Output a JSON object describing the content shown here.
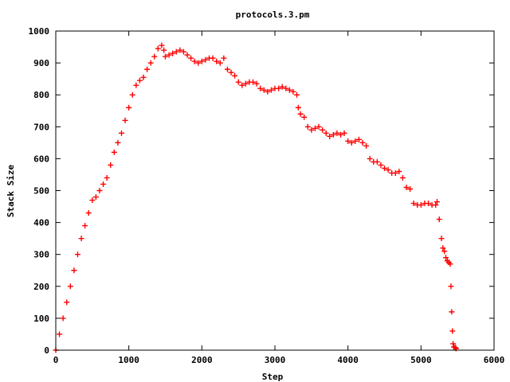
{
  "chart_data": {
    "type": "scatter",
    "title": "protocols.3.pm",
    "xlabel": "Step",
    "ylabel": "Stack Size",
    "xlim": [
      0,
      6000
    ],
    "ylim": [
      0,
      1000
    ],
    "xticks": [
      "0",
      "1000",
      "2000",
      "3000",
      "4000",
      "5000",
      "6000"
    ],
    "yticks": [
      "0",
      "100",
      "200",
      "300",
      "400",
      "500",
      "600",
      "700",
      "800",
      "900",
      "1000"
    ],
    "grid": false,
    "legend": "none",
    "marker": "+",
    "color": "#ff0000",
    "series": [
      {
        "points": [
          [
            0,
            0
          ],
          [
            50,
            50
          ],
          [
            100,
            100
          ],
          [
            150,
            150
          ],
          [
            200,
            200
          ],
          [
            250,
            250
          ],
          [
            300,
            300
          ],
          [
            350,
            350
          ],
          [
            400,
            390
          ],
          [
            450,
            430
          ],
          [
            500,
            470
          ],
          [
            550,
            480
          ],
          [
            600,
            500
          ],
          [
            650,
            520
          ],
          [
            700,
            540
          ],
          [
            750,
            580
          ],
          [
            800,
            620
          ],
          [
            850,
            650
          ],
          [
            900,
            680
          ],
          [
            950,
            720
          ],
          [
            1000,
            760
          ],
          [
            1050,
            800
          ],
          [
            1100,
            830
          ],
          [
            1150,
            845
          ],
          [
            1200,
            855
          ],
          [
            1250,
            880
          ],
          [
            1300,
            900
          ],
          [
            1350,
            920
          ],
          [
            1400,
            945
          ],
          [
            1450,
            955
          ],
          [
            1480,
            940
          ],
          [
            1500,
            920
          ],
          [
            1550,
            925
          ],
          [
            1600,
            930
          ],
          [
            1650,
            935
          ],
          [
            1700,
            940
          ],
          [
            1750,
            935
          ],
          [
            1800,
            925
          ],
          [
            1850,
            915
          ],
          [
            1900,
            905
          ],
          [
            1950,
            900
          ],
          [
            2000,
            905
          ],
          [
            2050,
            910
          ],
          [
            2100,
            915
          ],
          [
            2150,
            915
          ],
          [
            2200,
            905
          ],
          [
            2250,
            900
          ],
          [
            2300,
            915
          ],
          [
            2350,
            880
          ],
          [
            2400,
            870
          ],
          [
            2450,
            860
          ],
          [
            2500,
            840
          ],
          [
            2550,
            830
          ],
          [
            2600,
            835
          ],
          [
            2650,
            840
          ],
          [
            2700,
            840
          ],
          [
            2750,
            835
          ],
          [
            2800,
            820
          ],
          [
            2850,
            815
          ],
          [
            2900,
            810
          ],
          [
            2950,
            815
          ],
          [
            3000,
            820
          ],
          [
            3050,
            820
          ],
          [
            3100,
            825
          ],
          [
            3150,
            820
          ],
          [
            3200,
            815
          ],
          [
            3250,
            810
          ],
          [
            3300,
            800
          ],
          [
            3320,
            760
          ],
          [
            3350,
            740
          ],
          [
            3400,
            730
          ],
          [
            3450,
            700
          ],
          [
            3500,
            690
          ],
          [
            3550,
            695
          ],
          [
            3600,
            700
          ],
          [
            3650,
            690
          ],
          [
            3700,
            680
          ],
          [
            3750,
            670
          ],
          [
            3800,
            675
          ],
          [
            3850,
            680
          ],
          [
            3900,
            675
          ],
          [
            3950,
            680
          ],
          [
            4000,
            655
          ],
          [
            4050,
            650
          ],
          [
            4100,
            655
          ],
          [
            4150,
            660
          ],
          [
            4200,
            650
          ],
          [
            4250,
            640
          ],
          [
            4300,
            600
          ],
          [
            4350,
            590
          ],
          [
            4400,
            590
          ],
          [
            4450,
            580
          ],
          [
            4500,
            570
          ],
          [
            4550,
            565
          ],
          [
            4600,
            555
          ],
          [
            4650,
            555
          ],
          [
            4700,
            560
          ],
          [
            4750,
            540
          ],
          [
            4800,
            510
          ],
          [
            4850,
            505
          ],
          [
            4900,
            460
          ],
          [
            4950,
            455
          ],
          [
            5000,
            455
          ],
          [
            5050,
            460
          ],
          [
            5100,
            460
          ],
          [
            5150,
            455
          ],
          [
            5200,
            455
          ],
          [
            5220,
            465
          ],
          [
            5250,
            410
          ],
          [
            5280,
            350
          ],
          [
            5300,
            320
          ],
          [
            5320,
            310
          ],
          [
            5340,
            290
          ],
          [
            5360,
            280
          ],
          [
            5380,
            275
          ],
          [
            5400,
            270
          ],
          [
            5410,
            200
          ],
          [
            5420,
            120
          ],
          [
            5430,
            60
          ],
          [
            5440,
            20
          ],
          [
            5450,
            10
          ],
          [
            5470,
            8
          ],
          [
            5480,
            5
          ]
        ]
      }
    ]
  }
}
